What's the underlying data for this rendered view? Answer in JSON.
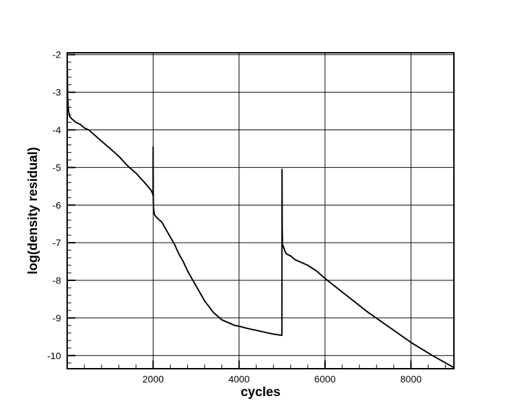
{
  "chart_data": {
    "type": "line",
    "title": "",
    "xlabel": "cycles",
    "ylabel": "log(density residual)",
    "xlim": [
      0,
      9000
    ],
    "ylim": [
      -10.35,
      -1.95
    ],
    "grid": true,
    "x_ticks": [
      2000,
      4000,
      6000,
      8000
    ],
    "x_tick_labels": [
      "2000",
      "4000",
      "6000",
      "8000"
    ],
    "y_ticks": [
      -2,
      -3,
      -4,
      -5,
      -6,
      -7,
      -8,
      -9,
      -10
    ],
    "y_tick_labels": [
      "-2",
      "-3",
      "-4",
      "-5",
      "-6",
      "-7",
      "-8",
      "-9",
      "-10"
    ],
    "line_color": "#000000",
    "grid_color": "#000000",
    "series": [
      {
        "x": [
          0,
          10,
          30,
          60,
          100,
          200,
          300,
          400,
          500,
          600,
          800,
          1000,
          1200,
          1400,
          1600,
          1800,
          1950,
          1990,
          1998,
          2000,
          2004,
          2010,
          2030,
          2060,
          2100,
          2200,
          2300,
          2400,
          2500,
          2600,
          2700,
          2800,
          2900,
          3000,
          3100,
          3200,
          3300,
          3400,
          3500,
          3600,
          3700,
          3800,
          3900,
          4000,
          4200,
          4400,
          4600,
          4800,
          4990,
          4998,
          5000,
          5004,
          5010,
          5030,
          5060,
          5100,
          5200,
          5300,
          5400,
          5500,
          5600,
          5800,
          6000,
          6500,
          7000,
          7500,
          8000,
          8500,
          9000
        ],
        "y": [
          -2.1,
          -3.1,
          -3.5,
          -3.65,
          -3.7,
          -3.8,
          -3.85,
          -3.95,
          -4.0,
          -4.1,
          -4.3,
          -4.5,
          -4.7,
          -4.95,
          -5.15,
          -5.4,
          -5.6,
          -5.7,
          -5.75,
          -4.45,
          -5.9,
          -6.1,
          -6.25,
          -6.3,
          -6.35,
          -6.45,
          -6.65,
          -6.85,
          -7.05,
          -7.3,
          -7.5,
          -7.75,
          -7.95,
          -8.15,
          -8.35,
          -8.55,
          -8.7,
          -8.85,
          -8.95,
          -9.05,
          -9.1,
          -9.15,
          -9.2,
          -9.22,
          -9.28,
          -9.33,
          -9.38,
          -9.43,
          -9.46,
          -9.46,
          -5.05,
          -6.6,
          -7.05,
          -7.1,
          -7.2,
          -7.3,
          -7.35,
          -7.45,
          -7.5,
          -7.55,
          -7.6,
          -7.75,
          -7.95,
          -8.4,
          -8.85,
          -9.25,
          -9.65,
          -10.0,
          -10.32
        ]
      }
    ]
  }
}
